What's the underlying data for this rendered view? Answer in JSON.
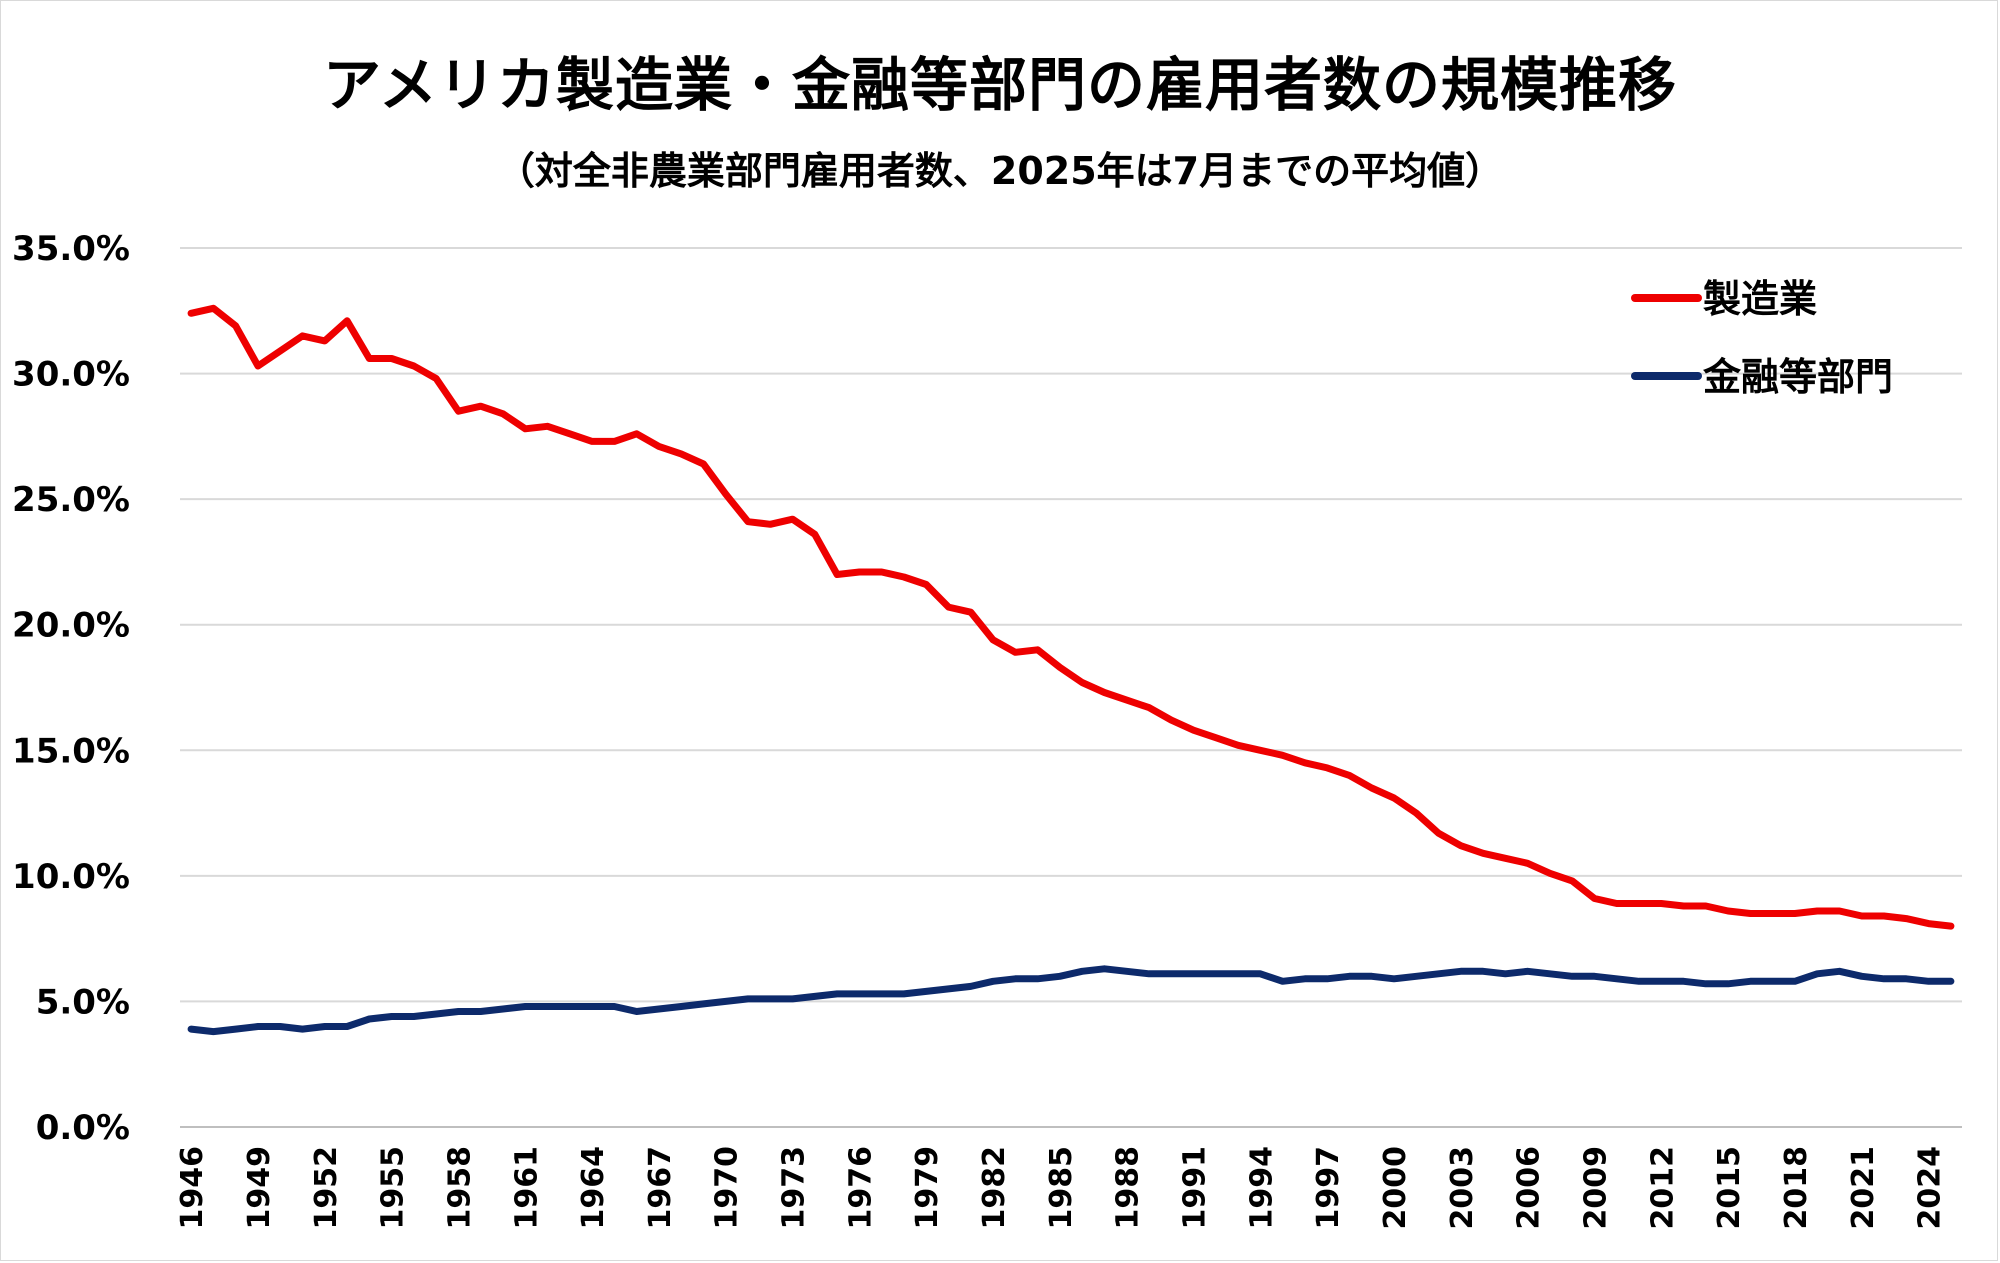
{
  "chart_data": {
    "type": "line",
    "title": "アメリカ製造業・金融等部門の雇用者数の規模推移",
    "subtitle": "（対全非農業部門雇用者数、2025年は7月までの平均値）",
    "xlabel": "",
    "ylabel": "",
    "ylim": [
      0,
      35
    ],
    "y_ticks": [
      "0.0%",
      "5.0%",
      "10.0%",
      "15.0%",
      "20.0%",
      "25.0%",
      "30.0%",
      "35.0%"
    ],
    "x_ticks": [
      "1946",
      "1949",
      "1952",
      "1955",
      "1958",
      "1961",
      "1964",
      "1967",
      "1970",
      "1973",
      "1976",
      "1979",
      "1982",
      "1985",
      "1988",
      "1991",
      "1994",
      "1997",
      "2000",
      "2003",
      "2006",
      "2009",
      "2012",
      "2015",
      "2018",
      "2021",
      "2024"
    ],
    "x_range": [
      1946,
      2025
    ],
    "grid": true,
    "legend_position": "top-right",
    "x": [
      1946,
      1947,
      1948,
      1949,
      1950,
      1951,
      1952,
      1953,
      1954,
      1955,
      1956,
      1957,
      1958,
      1959,
      1960,
      1961,
      1962,
      1963,
      1964,
      1965,
      1966,
      1967,
      1968,
      1969,
      1970,
      1971,
      1972,
      1973,
      1974,
      1975,
      1976,
      1977,
      1978,
      1979,
      1980,
      1981,
      1982,
      1983,
      1984,
      1985,
      1986,
      1987,
      1988,
      1989,
      1990,
      1991,
      1992,
      1993,
      1994,
      1995,
      1996,
      1997,
      1998,
      1999,
      2000,
      2001,
      2002,
      2003,
      2004,
      2005,
      2006,
      2007,
      2008,
      2009,
      2010,
      2011,
      2012,
      2013,
      2014,
      2015,
      2016,
      2017,
      2018,
      2019,
      2020,
      2021,
      2022,
      2023,
      2024,
      2025
    ],
    "series": [
      {
        "name": "製造業",
        "color": "#ee0000",
        "values": [
          32.4,
          32.6,
          31.9,
          30.3,
          30.9,
          31.5,
          31.3,
          32.1,
          30.6,
          30.6,
          30.3,
          29.8,
          28.5,
          28.7,
          28.4,
          27.8,
          27.9,
          27.6,
          27.3,
          27.3,
          27.6,
          27.1,
          26.8,
          26.4,
          25.2,
          24.1,
          24.0,
          24.2,
          23.6,
          22.0,
          22.1,
          22.1,
          21.9,
          21.6,
          20.7,
          20.5,
          19.4,
          18.9,
          19.0,
          18.3,
          17.7,
          17.3,
          17.0,
          16.7,
          16.2,
          15.8,
          15.5,
          15.2,
          15.0,
          14.8,
          14.5,
          14.3,
          14.0,
          13.5,
          13.1,
          12.5,
          11.7,
          11.2,
          10.9,
          10.7,
          10.5,
          10.1,
          9.8,
          9.1,
          8.9,
          8.9,
          8.9,
          8.8,
          8.8,
          8.6,
          8.5,
          8.5,
          8.5,
          8.6,
          8.6,
          8.4,
          8.4,
          8.3,
          8.1,
          8.0
        ]
      },
      {
        "name": "金融等部門",
        "color": "#0d2a6b",
        "values": [
          3.9,
          3.8,
          3.9,
          4.0,
          4.0,
          3.9,
          4.0,
          4.0,
          4.3,
          4.4,
          4.4,
          4.5,
          4.6,
          4.6,
          4.7,
          4.8,
          4.8,
          4.8,
          4.8,
          4.8,
          4.6,
          4.7,
          4.8,
          4.9,
          5.0,
          5.1,
          5.1,
          5.1,
          5.2,
          5.3,
          5.3,
          5.3,
          5.3,
          5.4,
          5.5,
          5.6,
          5.8,
          5.9,
          5.9,
          6.0,
          6.2,
          6.3,
          6.2,
          6.1,
          6.1,
          6.1,
          6.1,
          6.1,
          6.1,
          5.8,
          5.9,
          5.9,
          6.0,
          6.0,
          5.9,
          6.0,
          6.1,
          6.2,
          6.2,
          6.1,
          6.2,
          6.1,
          6.0,
          6.0,
          5.9,
          5.8,
          5.8,
          5.8,
          5.7,
          5.7,
          5.8,
          5.8,
          5.8,
          6.1,
          6.2,
          6.0,
          5.9,
          5.9,
          5.8,
          5.8
        ]
      }
    ]
  }
}
